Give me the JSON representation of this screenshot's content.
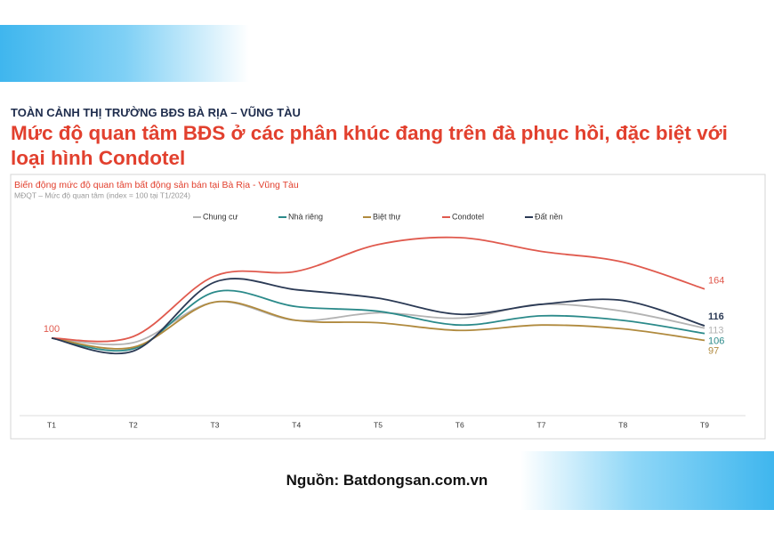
{
  "header": {
    "kicker": "TOÀN CẢNH THỊ TRƯỜNG BĐS BÀ RỊA – VŨNG TÀU",
    "title": "Mức độ quan tâm BĐS ở các phân khúc đang trên đà phục hồi, đặc biệt với loại hình Condotel"
  },
  "chart_data": {
    "type": "line",
    "title": "Biến động mức độ quan tâm bất động sản bán tại Bà Rịa - Vũng Tàu",
    "subtitle": "MĐQT – Mức độ quan tâm (index = 100 tại T1/2024)",
    "categories": [
      "T1",
      "T2",
      "T3",
      "T4",
      "T5",
      "T6",
      "T7",
      "T8",
      "T9"
    ],
    "ylim": [
      0,
      260
    ],
    "series": [
      {
        "name": "Chung cư",
        "color": "#b3b3b3",
        "values": [
          100,
          94,
          147,
          123,
          133,
          126,
          144,
          135,
          113
        ]
      },
      {
        "name": "Nhà riêng",
        "color": "#2b8a8a",
        "values": [
          100,
          86,
          160,
          141,
          135,
          117,
          129,
          123,
          106
        ]
      },
      {
        "name": "Biệt thự",
        "color": "#b08a3e",
        "values": [
          100,
          88,
          147,
          123,
          120,
          110,
          117,
          112,
          97
        ]
      },
      {
        "name": "Condotel",
        "color": "#e05a4e",
        "values": [
          100,
          102,
          181,
          187,
          222,
          231,
          213,
          199,
          164
        ]
      },
      {
        "name": "Đất nền",
        "color": "#2b3a55",
        "values": [
          100,
          83,
          173,
          163,
          152,
          131,
          144,
          149,
          116
        ]
      }
    ]
  },
  "footer": {
    "source": "Nguồn: Batdongsan.com.vn"
  }
}
